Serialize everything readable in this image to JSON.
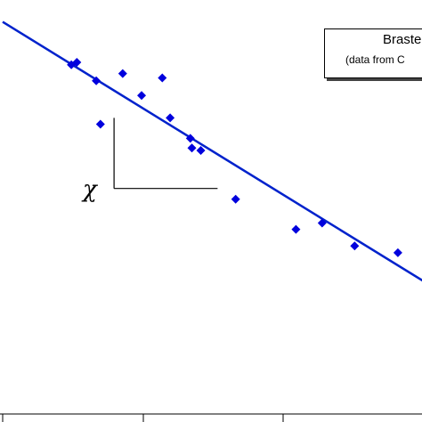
{
  "chart_data": {
    "type": "scatter",
    "legend_title": "Braste",
    "legend_subtitle": "(data from C",
    "slope_label": "χ",
    "series_color": "#0000dd",
    "line_color": "#0022cc",
    "points": [
      {
        "x": 0.262,
        "y": 0.717
      },
      {
        "x": 0.283,
        "y": 0.722
      },
      {
        "x": 0.357,
        "y": 0.684
      },
      {
        "x": 0.373,
        "y": 0.595
      },
      {
        "x": 0.458,
        "y": 0.699
      },
      {
        "x": 0.53,
        "y": 0.654
      },
      {
        "x": 0.609,
        "y": 0.69
      },
      {
        "x": 0.639,
        "y": 0.608
      },
      {
        "x": 0.716,
        "y": 0.566
      },
      {
        "x": 0.722,
        "y": 0.546
      },
      {
        "x": 0.756,
        "y": 0.541
      },
      {
        "x": 0.889,
        "y": 0.441
      },
      {
        "x": 1.119,
        "y": 0.379
      },
      {
        "x": 1.219,
        "y": 0.392
      },
      {
        "x": 1.343,
        "y": 0.345
      },
      {
        "x": 1.508,
        "y": 0.331
      }
    ],
    "fit_line": {
      "x1": 0.0,
      "y1": 0.805,
      "x2": 1.62,
      "y2": 0.268
    },
    "xlim": [
      0.0,
      1.6
    ],
    "ylim": [
      0.0,
      0.85
    ],
    "slope_triangle": {
      "x_left": 0.425,
      "x_right": 0.82,
      "y_top": 0.608,
      "y_bottom": 0.463
    }
  }
}
